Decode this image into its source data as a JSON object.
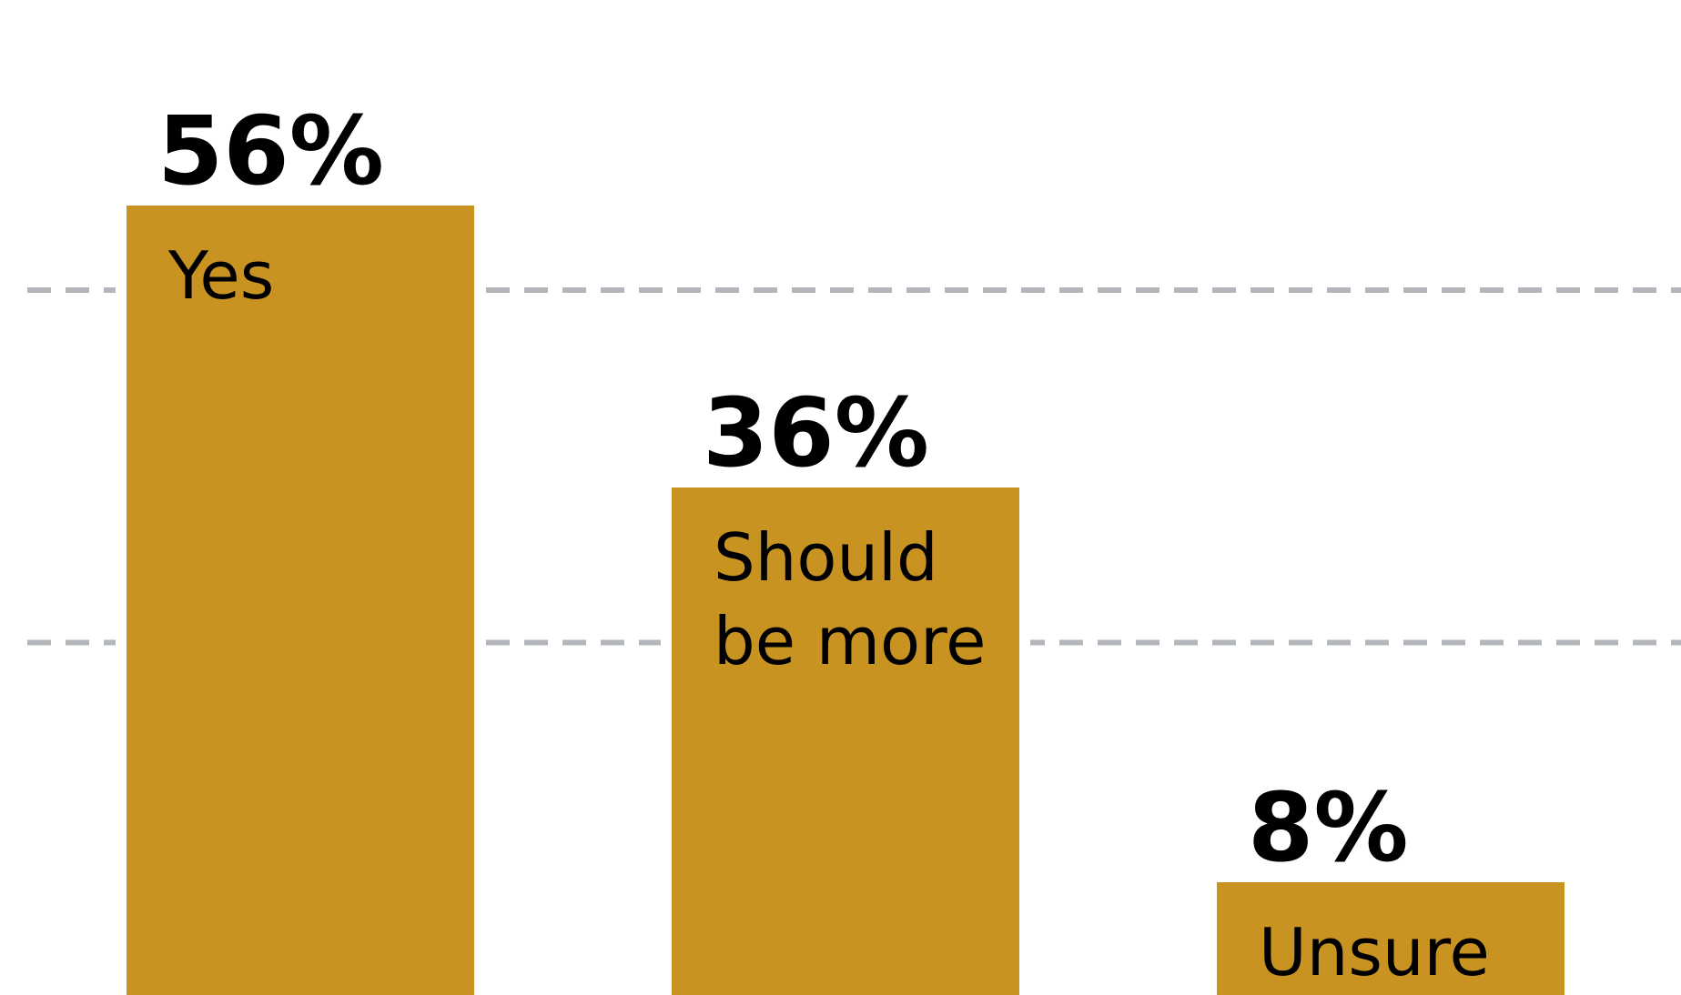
{
  "chart_data": {
    "type": "bar",
    "categories": [
      [
        "Yes"
      ],
      [
        "Should",
        "be more"
      ],
      [
        "Unsure"
      ]
    ],
    "values": [
      56,
      36,
      8
    ],
    "value_labels": [
      "56%",
      "36%",
      "8%"
    ],
    "title": "",
    "xlabel": "",
    "ylabel": "",
    "ylim": [
      0,
      60
    ],
    "grid": true,
    "gridlines_at": [
      50,
      25
    ],
    "colors": {
      "bar": "#C99322",
      "grid": "#B3B6BA",
      "text": "#000000"
    }
  }
}
